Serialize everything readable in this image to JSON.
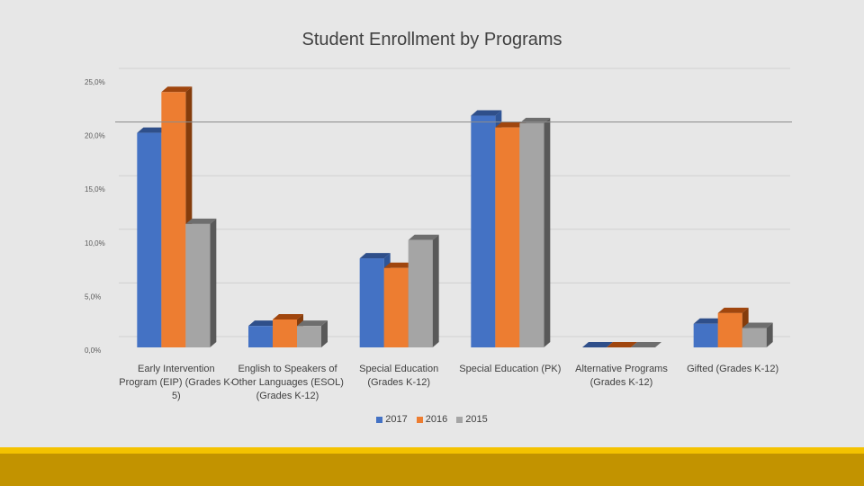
{
  "chart_data": {
    "type": "bar",
    "title": "Student Enrollment by Programs",
    "categories": [
      "Early Intervention Program (EIP) (Grades K-5)",
      "English to Speakers of Other Languages (ESOL) (Grades K-12)",
      "Special Education (Grades K-12)",
      "Special Education (PK)",
      "Alternative Programs (Grades K-12)",
      "Gifted (Grades K-12)"
    ],
    "category_lines": [
      [
        "Early Intervention",
        "Program (EIP) (Grades K-",
        "5)"
      ],
      [
        "English to Speakers of",
        "Other Languages (ESOL)",
        "(Grades K-12)"
      ],
      [
        "Special Education",
        "(Grades K-12)"
      ],
      [
        "Special Education (PK)"
      ],
      [
        "Alternative Programs",
        "(Grades K-12)"
      ],
      [
        "Gifted (Grades K-12)"
      ]
    ],
    "series": [
      {
        "name": "2017",
        "color": "#4472c4",
        "side": "#2f5597",
        "top": "#2f4f8a",
        "values": [
          20.0,
          2.0,
          8.3,
          21.6,
          0.0,
          2.2
        ]
      },
      {
        "name": "2016",
        "color": "#ed7d31",
        "side": "#843c0c",
        "top": "#a0460e",
        "values": [
          23.8,
          2.6,
          7.4,
          20.5,
          0.0,
          3.2
        ]
      },
      {
        "name": "2015",
        "color": "#a5a5a5",
        "side": "#595959",
        "top": "#6e6e6e",
        "values": [
          11.5,
          2.0,
          10.0,
          20.9,
          0.0,
          1.8
        ]
      }
    ],
    "ylim": [
      0,
      25
    ],
    "yticks": [
      0,
      5,
      10,
      15,
      20,
      25
    ],
    "ytick_labels": [
      "0,0%",
      "5,0%",
      "10,0%",
      "15,0%",
      "20,0%",
      "25,0%"
    ],
    "xlabel": "",
    "ylabel": "",
    "grid": true,
    "legend_position": "bottom"
  }
}
